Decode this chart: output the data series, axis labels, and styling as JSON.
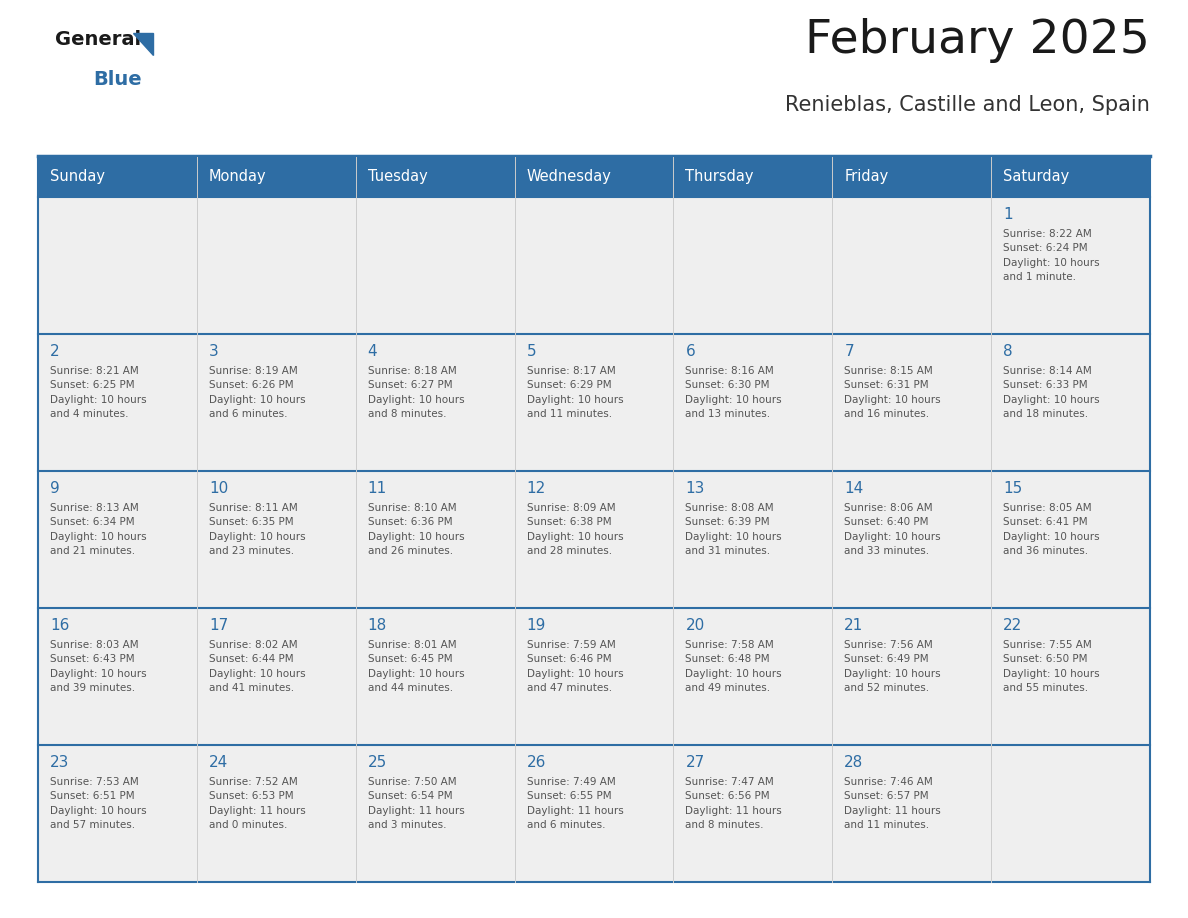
{
  "title": "February 2025",
  "subtitle": "Renieblas, Castille and Leon, Spain",
  "header_bg": "#2E6DA4",
  "header_text_color": "#FFFFFF",
  "cell_bg": "#EFEFEF",
  "day_number_color": "#2E6DA4",
  "text_color": "#555555",
  "row_line_color": "#2E6DA4",
  "col_line_color": "#CCCCCC",
  "days_of_week": [
    "Sunday",
    "Monday",
    "Tuesday",
    "Wednesday",
    "Thursday",
    "Friday",
    "Saturday"
  ],
  "weeks": [
    [
      {
        "day": null,
        "info": null
      },
      {
        "day": null,
        "info": null
      },
      {
        "day": null,
        "info": null
      },
      {
        "day": null,
        "info": null
      },
      {
        "day": null,
        "info": null
      },
      {
        "day": null,
        "info": null
      },
      {
        "day": 1,
        "info": "Sunrise: 8:22 AM\nSunset: 6:24 PM\nDaylight: 10 hours\nand 1 minute."
      }
    ],
    [
      {
        "day": 2,
        "info": "Sunrise: 8:21 AM\nSunset: 6:25 PM\nDaylight: 10 hours\nand 4 minutes."
      },
      {
        "day": 3,
        "info": "Sunrise: 8:19 AM\nSunset: 6:26 PM\nDaylight: 10 hours\nand 6 minutes."
      },
      {
        "day": 4,
        "info": "Sunrise: 8:18 AM\nSunset: 6:27 PM\nDaylight: 10 hours\nand 8 minutes."
      },
      {
        "day": 5,
        "info": "Sunrise: 8:17 AM\nSunset: 6:29 PM\nDaylight: 10 hours\nand 11 minutes."
      },
      {
        "day": 6,
        "info": "Sunrise: 8:16 AM\nSunset: 6:30 PM\nDaylight: 10 hours\nand 13 minutes."
      },
      {
        "day": 7,
        "info": "Sunrise: 8:15 AM\nSunset: 6:31 PM\nDaylight: 10 hours\nand 16 minutes."
      },
      {
        "day": 8,
        "info": "Sunrise: 8:14 AM\nSunset: 6:33 PM\nDaylight: 10 hours\nand 18 minutes."
      }
    ],
    [
      {
        "day": 9,
        "info": "Sunrise: 8:13 AM\nSunset: 6:34 PM\nDaylight: 10 hours\nand 21 minutes."
      },
      {
        "day": 10,
        "info": "Sunrise: 8:11 AM\nSunset: 6:35 PM\nDaylight: 10 hours\nand 23 minutes."
      },
      {
        "day": 11,
        "info": "Sunrise: 8:10 AM\nSunset: 6:36 PM\nDaylight: 10 hours\nand 26 minutes."
      },
      {
        "day": 12,
        "info": "Sunrise: 8:09 AM\nSunset: 6:38 PM\nDaylight: 10 hours\nand 28 minutes."
      },
      {
        "day": 13,
        "info": "Sunrise: 8:08 AM\nSunset: 6:39 PM\nDaylight: 10 hours\nand 31 minutes."
      },
      {
        "day": 14,
        "info": "Sunrise: 8:06 AM\nSunset: 6:40 PM\nDaylight: 10 hours\nand 33 minutes."
      },
      {
        "day": 15,
        "info": "Sunrise: 8:05 AM\nSunset: 6:41 PM\nDaylight: 10 hours\nand 36 minutes."
      }
    ],
    [
      {
        "day": 16,
        "info": "Sunrise: 8:03 AM\nSunset: 6:43 PM\nDaylight: 10 hours\nand 39 minutes."
      },
      {
        "day": 17,
        "info": "Sunrise: 8:02 AM\nSunset: 6:44 PM\nDaylight: 10 hours\nand 41 minutes."
      },
      {
        "day": 18,
        "info": "Sunrise: 8:01 AM\nSunset: 6:45 PM\nDaylight: 10 hours\nand 44 minutes."
      },
      {
        "day": 19,
        "info": "Sunrise: 7:59 AM\nSunset: 6:46 PM\nDaylight: 10 hours\nand 47 minutes."
      },
      {
        "day": 20,
        "info": "Sunrise: 7:58 AM\nSunset: 6:48 PM\nDaylight: 10 hours\nand 49 minutes."
      },
      {
        "day": 21,
        "info": "Sunrise: 7:56 AM\nSunset: 6:49 PM\nDaylight: 10 hours\nand 52 minutes."
      },
      {
        "day": 22,
        "info": "Sunrise: 7:55 AM\nSunset: 6:50 PM\nDaylight: 10 hours\nand 55 minutes."
      }
    ],
    [
      {
        "day": 23,
        "info": "Sunrise: 7:53 AM\nSunset: 6:51 PM\nDaylight: 10 hours\nand 57 minutes."
      },
      {
        "day": 24,
        "info": "Sunrise: 7:52 AM\nSunset: 6:53 PM\nDaylight: 11 hours\nand 0 minutes."
      },
      {
        "day": 25,
        "info": "Sunrise: 7:50 AM\nSunset: 6:54 PM\nDaylight: 11 hours\nand 3 minutes."
      },
      {
        "day": 26,
        "info": "Sunrise: 7:49 AM\nSunset: 6:55 PM\nDaylight: 11 hours\nand 6 minutes."
      },
      {
        "day": 27,
        "info": "Sunrise: 7:47 AM\nSunset: 6:56 PM\nDaylight: 11 hours\nand 8 minutes."
      },
      {
        "day": 28,
        "info": "Sunrise: 7:46 AM\nSunset: 6:57 PM\nDaylight: 11 hours\nand 11 minutes."
      },
      {
        "day": null,
        "info": null
      }
    ]
  ],
  "logo_text_general": "General",
  "logo_text_blue": "Blue",
  "logo_color_general": "#1a1a1a",
  "logo_color_blue": "#2E6DA4",
  "logo_triangle_color": "#2E6DA4",
  "title_color": "#1a1a1a",
  "subtitle_color": "#333333"
}
